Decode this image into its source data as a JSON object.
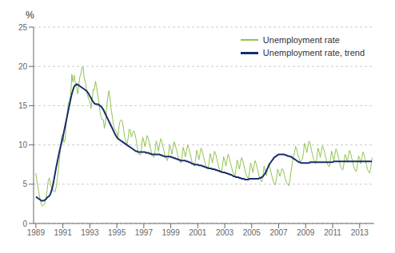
{
  "chart_data": {
    "type": "line",
    "ylabel": "%",
    "xlim": [
      1988.83,
      2014.08
    ],
    "ylim": [
      0,
      25
    ],
    "xticks": [
      1989,
      1991,
      1993,
      1995,
      1997,
      1999,
      2001,
      2003,
      2005,
      2007,
      2009,
      2011,
      2013
    ],
    "yticks": [
      0,
      5,
      10,
      15,
      20,
      25
    ],
    "grid": true,
    "legend": "upper right",
    "x": [
      1989,
      1989.0833,
      1989.1667,
      1989.25,
      1989.3333,
      1989.4167,
      1989.5,
      1989.5833,
      1989.6667,
      1989.75,
      1989.8333,
      1989.9167,
      1990,
      1990.0833,
      1990.1667,
      1990.25,
      1990.3333,
      1990.4167,
      1990.5,
      1990.5833,
      1990.6667,
      1990.75,
      1990.8333,
      1990.9167,
      1991,
      1991.0833,
      1991.1667,
      1991.25,
      1991.3333,
      1991.4167,
      1991.5,
      1991.5833,
      1991.6667,
      1991.75,
      1991.8333,
      1991.9167,
      1992,
      1992.0833,
      1992.1667,
      1992.25,
      1992.3333,
      1992.4167,
      1992.5,
      1992.5833,
      1992.6667,
      1992.75,
      1992.8333,
      1992.9167,
      1993,
      1993.0833,
      1993.1667,
      1993.25,
      1993.3333,
      1993.4167,
      1993.5,
      1993.5833,
      1993.6667,
      1993.75,
      1993.8333,
      1993.9167,
      1994,
      1994.0833,
      1994.1667,
      1994.25,
      1994.3333,
      1994.4167,
      1994.5,
      1994.5833,
      1994.6667,
      1994.75,
      1994.8333,
      1994.9167,
      1995,
      1995.0833,
      1995.1667,
      1995.25,
      1995.3333,
      1995.4167,
      1995.5,
      1995.5833,
      1995.6667,
      1995.75,
      1995.8333,
      1995.9167,
      1996,
      1996.0833,
      1996.1667,
      1996.25,
      1996.3333,
      1996.4167,
      1996.5,
      1996.5833,
      1996.6667,
      1996.75,
      1996.8333,
      1996.9167,
      1997,
      1997.0833,
      1997.1667,
      1997.25,
      1997.3333,
      1997.4167,
      1997.5,
      1997.5833,
      1997.6667,
      1997.75,
      1997.8333,
      1997.9167,
      1998,
      1998.0833,
      1998.1667,
      1998.25,
      1998.3333,
      1998.4167,
      1998.5,
      1998.5833,
      1998.6667,
      1998.75,
      1998.8333,
      1998.9167,
      1999,
      1999.0833,
      1999.1667,
      1999.25,
      1999.3333,
      1999.4167,
      1999.5,
      1999.5833,
      1999.6667,
      1999.75,
      1999.8333,
      1999.9167,
      2000,
      2000.0833,
      2000.1667,
      2000.25,
      2000.3333,
      2000.4167,
      2000.5,
      2000.5833,
      2000.6667,
      2000.75,
      2000.8333,
      2000.9167,
      2001,
      2001.0833,
      2001.1667,
      2001.25,
      2001.3333,
      2001.4167,
      2001.5,
      2001.5833,
      2001.6667,
      2001.75,
      2001.8333,
      2001.9167,
      2002,
      2002.0833,
      2002.1667,
      2002.25,
      2002.3333,
      2002.4167,
      2002.5,
      2002.5833,
      2002.6667,
      2002.75,
      2002.8333,
      2002.9167,
      2003,
      2003.0833,
      2003.1667,
      2003.25,
      2003.3333,
      2003.4167,
      2003.5,
      2003.5833,
      2003.6667,
      2003.75,
      2003.8333,
      2003.9167,
      2004,
      2004.0833,
      2004.1667,
      2004.25,
      2004.3333,
      2004.4167,
      2004.5,
      2004.5833,
      2004.6667,
      2004.75,
      2004.8333,
      2004.9167,
      2005,
      2005.0833,
      2005.1667,
      2005.25,
      2005.3333,
      2005.4167,
      2005.5,
      2005.5833,
      2005.6667,
      2005.75,
      2005.8333,
      2005.9167,
      2006,
      2006.0833,
      2006.1667,
      2006.25,
      2006.3333,
      2006.4167,
      2006.5,
      2006.5833,
      2006.6667,
      2006.75,
      2006.8333,
      2006.9167,
      2007,
      2007.0833,
      2007.1667,
      2007.25,
      2007.3333,
      2007.4167,
      2007.5,
      2007.5833,
      2007.6667,
      2007.75,
      2007.8333,
      2007.9167,
      2008,
      2008.0833,
      2008.1667,
      2008.25,
      2008.3333,
      2008.4167,
      2008.5,
      2008.5833,
      2008.6667,
      2008.75,
      2008.8333,
      2008.9167,
      2009,
      2009.0833,
      2009.1667,
      2009.25,
      2009.3333,
      2009.4167,
      2009.5,
      2009.5833,
      2009.6667,
      2009.75,
      2009.8333,
      2009.9167,
      2010,
      2010.0833,
      2010.1667,
      2010.25,
      2010.3333,
      2010.4167,
      2010.5,
      2010.5833,
      2010.6667,
      2010.75,
      2010.8333,
      2010.9167,
      2011,
      2011.0833,
      2011.1667,
      2011.25,
      2011.3333,
      2011.4167,
      2011.5,
      2011.5833,
      2011.6667,
      2011.75,
      2011.8333,
      2011.9167,
      2012,
      2012.0833,
      2012.1667,
      2012.25,
      2012.3333,
      2012.4167,
      2012.5,
      2012.5833,
      2012.6667,
      2012.75,
      2012.8333,
      2012.9167,
      2013,
      2013.0833,
      2013.1667,
      2013.25,
      2013.3333,
      2013.4167,
      2013.5,
      2013.5833,
      2013.6667,
      2013.75,
      2013.8333,
      2013.9167
    ],
    "series": [
      {
        "name": "Unemployment rate",
        "color": "#90c44e",
        "values": [
          6.4,
          5.3,
          4.5,
          3.6,
          2.9,
          2.4,
          2.2,
          2.3,
          2.6,
          3.3,
          4.2,
          5.5,
          5.8,
          5.0,
          4.5,
          4.4,
          4.1,
          4.0,
          4.6,
          5.6,
          6.9,
          8.2,
          9.9,
          11.2,
          11.3,
          10.3,
          10.7,
          12.7,
          14.1,
          15.4,
          15.6,
          16.4,
          19.0,
          18.0,
          18.9,
          17.9,
          17.9,
          16.5,
          17.2,
          18.6,
          19.0,
          19.8,
          20.0,
          18.5,
          18.0,
          17.1,
          16.3,
          15.8,
          15.6,
          14.6,
          15.7,
          17.1,
          17.0,
          18.1,
          17.4,
          16.4,
          15.5,
          14.3,
          13.6,
          13.2,
          13.2,
          12.1,
          13.0,
          14.8,
          16.1,
          16.9,
          15.9,
          14.5,
          13.6,
          12.6,
          12.0,
          11.8,
          11.6,
          10.8,
          12.4,
          13.1,
          13.2,
          13.0,
          12.0,
          11.0,
          10.5,
          10.0,
          10.8,
          12.0,
          11.9,
          11.0,
          11.5,
          11.8,
          11.5,
          10.8,
          10.0,
          9.0,
          8.8,
          8.7,
          9.5,
          11.0,
          10.5,
          9.8,
          10.5,
          11.2,
          10.8,
          10.2,
          9.6,
          8.8,
          8.6,
          8.4,
          9.2,
          10.5,
          10.0,
          9.2,
          10.0,
          10.8,
          10.5,
          9.8,
          9.2,
          8.5,
          8.2,
          8.0,
          8.8,
          10.0,
          9.5,
          8.8,
          9.6,
          10.4,
          10.0,
          9.4,
          8.8,
          8.2,
          7.9,
          7.7,
          8.5,
          9.7,
          9.2,
          8.5,
          9.3,
          10.0,
          9.6,
          9.0,
          8.4,
          7.8,
          7.5,
          7.3,
          8.1,
          9.3,
          8.8,
          8.1,
          8.9,
          9.6,
          9.2,
          8.6,
          8.0,
          7.4,
          7.1,
          6.9,
          7.7,
          8.9,
          8.4,
          7.7,
          8.5,
          9.2,
          8.8,
          8.2,
          7.6,
          7.0,
          6.7,
          6.5,
          7.3,
          8.5,
          8.0,
          7.3,
          8.1,
          8.8,
          8.4,
          7.8,
          7.2,
          6.6,
          6.3,
          6.1,
          6.9,
          8.1,
          7.6,
          6.9,
          7.7,
          8.4,
          8.0,
          7.4,
          6.8,
          6.2,
          5.9,
          5.7,
          6.5,
          7.7,
          7.2,
          6.5,
          7.3,
          8.0,
          7.6,
          7.0,
          6.4,
          5.8,
          5.5,
          5.3,
          6.1,
          7.3,
          6.8,
          6.1,
          6.9,
          7.6,
          7.2,
          6.6,
          6.0,
          5.4,
          5.1,
          4.9,
          5.7,
          6.9,
          6.6,
          6.0,
          6.5,
          7.0,
          6.8,
          6.2,
          5.6,
          5.2,
          5.0,
          4.8,
          5.5,
          6.7,
          7.5,
          8.5,
          9.0,
          9.8,
          9.5,
          8.8,
          8.4,
          7.8,
          8.0,
          8.2,
          9.0,
          10.2,
          9.8,
          9.0,
          9.8,
          10.5,
          10.2,
          9.4,
          8.8,
          8.2,
          7.8,
          7.6,
          8.4,
          9.6,
          9.1,
          8.4,
          9.2,
          9.9,
          9.5,
          8.9,
          8.3,
          7.7,
          7.4,
          7.2,
          8.0,
          9.2,
          8.7,
          8.0,
          8.8,
          9.5,
          9.1,
          8.5,
          7.9,
          7.3,
          7.0,
          6.8,
          7.6,
          8.8,
          8.5,
          7.8,
          8.6,
          9.3,
          8.9,
          8.3,
          7.7,
          7.1,
          6.8,
          6.6,
          7.4,
          8.6,
          8.3,
          7.6,
          8.4,
          9.1,
          8.7,
          8.1,
          7.5,
          6.9,
          6.6,
          6.4,
          7.2,
          8.4
        ]
      },
      {
        "name": "Unemployment rate, trend",
        "color": "#1a2d6d",
        "values": [
          3.4,
          3.3,
          3.2,
          3.1,
          3.0,
          2.9,
          2.9,
          2.9,
          3.0,
          3.1,
          3.3,
          3.4,
          3.5,
          3.8,
          4.2,
          4.8,
          5.5,
          6.3,
          7.1,
          7.8,
          8.5,
          9.2,
          9.8,
          10.4,
          11.0,
          11.7,
          12.4,
          13.1,
          13.8,
          14.5,
          15.2,
          15.9,
          16.5,
          17.0,
          17.4,
          17.6,
          17.7,
          17.7,
          17.6,
          17.5,
          17.4,
          17.3,
          17.2,
          17.1,
          17.0,
          16.9,
          16.7,
          16.5,
          16.2,
          16.0,
          15.7,
          15.5,
          15.3,
          15.2,
          15.2,
          15.2,
          15.1,
          15.0,
          14.9,
          14.7,
          14.5,
          14.2,
          13.9,
          13.6,
          13.3,
          13.0,
          12.7,
          12.4,
          12.1,
          11.8,
          11.5,
          11.2,
          11.0,
          10.8,
          10.7,
          10.6,
          10.5,
          10.4,
          10.3,
          10.2,
          10.1,
          10.0,
          9.9,
          9.8,
          9.7,
          9.6,
          9.5,
          9.4,
          9.3,
          9.2,
          9.2,
          9.1,
          9.1,
          9.1,
          9.1,
          9.1,
          9.1,
          9.1,
          9.0,
          9.0,
          9.0,
          8.9,
          8.9,
          8.8,
          8.8,
          8.8,
          8.8,
          8.8,
          8.8,
          8.8,
          8.8,
          8.7,
          8.7,
          8.6,
          8.6,
          8.5,
          8.5,
          8.5,
          8.5,
          8.5,
          8.5,
          8.4,
          8.4,
          8.3,
          8.3,
          8.2,
          8.2,
          8.1,
          8.1,
          8.0,
          8.0,
          8.0,
          8.0,
          8.0,
          7.9,
          7.9,
          7.8,
          7.8,
          7.7,
          7.6,
          7.6,
          7.5,
          7.5,
          7.5,
          7.5,
          7.4,
          7.4,
          7.4,
          7.3,
          7.3,
          7.2,
          7.2,
          7.1,
          7.1,
          7.0,
          7.0,
          7.0,
          6.9,
          6.9,
          6.9,
          6.8,
          6.8,
          6.7,
          6.7,
          6.6,
          6.6,
          6.5,
          6.5,
          6.5,
          6.4,
          6.4,
          6.3,
          6.3,
          6.2,
          6.2,
          6.1,
          6.0,
          6.0,
          5.9,
          5.9,
          5.9,
          5.8,
          5.8,
          5.7,
          5.7,
          5.7,
          5.6,
          5.6,
          5.6,
          5.6,
          5.7,
          5.7,
          5.7,
          5.7,
          5.7,
          5.7,
          5.7,
          5.7,
          5.7,
          5.8,
          5.8,
          5.9,
          6.0,
          6.2,
          6.4,
          6.7,
          7.0,
          7.3,
          7.6,
          7.8,
          8.0,
          8.2,
          8.4,
          8.5,
          8.6,
          8.7,
          8.8,
          8.8,
          8.8,
          8.8,
          8.8,
          8.8,
          8.7,
          8.7,
          8.6,
          8.6,
          8.5,
          8.5,
          8.4,
          8.3,
          8.2,
          8.1,
          8.0,
          7.9,
          7.8,
          7.8,
          7.7,
          7.7,
          7.7,
          7.7,
          7.7,
          7.7,
          7.7,
          7.7,
          7.8,
          7.8,
          7.8,
          7.8,
          7.8,
          7.8,
          7.8,
          7.8,
          7.8,
          7.8,
          7.8,
          7.8,
          7.8,
          7.8,
          7.8,
          7.8,
          7.8,
          7.8,
          7.8,
          7.8,
          7.8,
          7.9,
          7.9,
          7.9,
          7.9,
          7.9,
          7.9,
          7.9,
          7.9,
          7.9,
          7.9,
          7.9,
          7.9,
          7.9,
          7.9,
          7.9,
          7.9,
          7.9,
          7.9,
          7.9,
          7.9,
          7.9,
          7.9,
          7.9,
          7.9,
          7.9,
          7.9,
          7.9,
          7.9,
          7.9,
          7.9,
          7.9,
          7.9,
          7.9,
          7.9,
          7.9
        ]
      }
    ]
  }
}
